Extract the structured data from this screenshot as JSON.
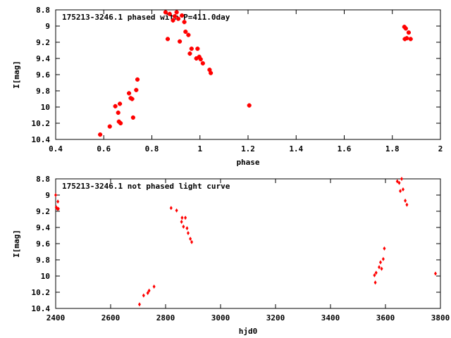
{
  "chart_data": [
    {
      "type": "scatter",
      "title": "175213-3246.1 phased with P=411.0day",
      "xlabel": "phase",
      "ylabel": "I[mag]",
      "xlim": [
        0.4,
        2.0
      ],
      "ylim": [
        10.4,
        8.8
      ],
      "y_inverted": true,
      "xticks": [
        "0.4",
        "0.6",
        "0.8",
        "1",
        "1.2",
        "1.4",
        "1.6",
        "1.8",
        "2"
      ],
      "yticks": [
        "8.8",
        "9",
        "9.2",
        "9.4",
        "9.6",
        "9.8",
        "10",
        "10.2",
        "10.4"
      ],
      "grid": false,
      "marker": "plus",
      "color": "#ff0000",
      "x": [
        0.585,
        0.625,
        0.648,
        0.66,
        0.663,
        0.667,
        0.67,
        0.705,
        0.712,
        0.718,
        0.722,
        0.735,
        0.74,
        0.857,
        0.866,
        0.874,
        0.888,
        0.895,
        0.903,
        0.91,
        0.916,
        0.925,
        0.935,
        0.94,
        0.952,
        0.958,
        0.965,
        0.985,
        0.99,
        0.997,
        1.003,
        1.012,
        1.04,
        1.045,
        1.205,
        1.85,
        1.852,
        1.856,
        1.86,
        1.868,
        1.876
      ],
      "y": [
        10.34,
        10.24,
        9.99,
        10.07,
        10.18,
        9.96,
        10.2,
        9.83,
        9.89,
        9.9,
        10.13,
        9.79,
        9.66,
        8.83,
        9.16,
        8.85,
        8.93,
        8.88,
        8.83,
        8.91,
        9.19,
        8.87,
        8.95,
        9.07,
        9.11,
        9.34,
        9.28,
        9.4,
        9.28,
        9.38,
        9.41,
        9.46,
        9.54,
        9.58,
        9.98,
        9.01,
        9.16,
        9.03,
        9.15,
        9.08,
        9.16
      ]
    },
    {
      "type": "scatter",
      "title": "175213-3246.1 not phased light curve",
      "xlabel": "hjd0",
      "ylabel": "I[mag]",
      "xlim": [
        2400,
        3800
      ],
      "ylim": [
        10.4,
        8.8
      ],
      "y_inverted": true,
      "xticks": [
        "2400",
        "2600",
        "2800",
        "3000",
        "3200",
        "3400",
        "3600",
        "3800"
      ],
      "yticks": [
        "8.8",
        "9",
        "9.2",
        "9.4",
        "9.6",
        "9.8",
        "10",
        "10.2",
        "10.4"
      ],
      "grid": false,
      "marker": "diamond",
      "color": "#ff0000",
      "x": [
        2400,
        2402,
        2406,
        2408,
        2410,
        2705,
        2720,
        2735,
        2740,
        2758,
        2820,
        2840,
        2858,
        2860,
        2865,
        2872,
        2878,
        2882,
        2890,
        2895,
        3560,
        3563,
        3566,
        3577,
        3582,
        3586,
        3592,
        3596,
        3643,
        3650,
        3654,
        3659,
        3664,
        3672,
        3678,
        3782
      ],
      "y": [
        9.0,
        9.15,
        9.17,
        9.08,
        9.17,
        10.35,
        10.24,
        10.21,
        10.18,
        10.13,
        9.16,
        9.19,
        9.33,
        9.28,
        9.39,
        9.28,
        9.41,
        9.47,
        9.54,
        9.58,
        9.99,
        10.08,
        9.96,
        9.89,
        9.83,
        9.91,
        9.79,
        9.66,
        8.83,
        8.85,
        8.95,
        8.8,
        8.93,
        9.07,
        9.12,
        9.97
      ]
    }
  ]
}
